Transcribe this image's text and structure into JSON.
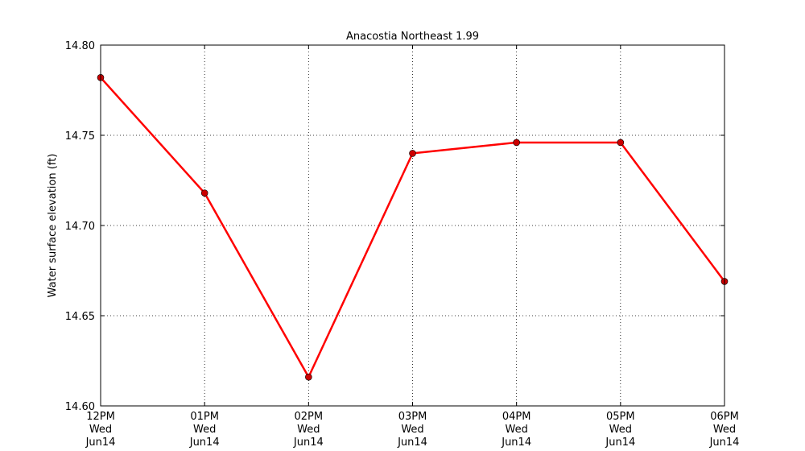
{
  "chart_data": {
    "type": "line",
    "title": "Anacostia Northeast 1.99",
    "xlabel": "",
    "ylabel": "Water surface elevation (ft)",
    "categories": [
      [
        "12PM",
        "Wed",
        "Jun14"
      ],
      [
        "01PM",
        "Wed",
        "Jun14"
      ],
      [
        "02PM",
        "Wed",
        "Jun14"
      ],
      [
        "03PM",
        "Wed",
        "Jun14"
      ],
      [
        "04PM",
        "Wed",
        "Jun14"
      ],
      [
        "05PM",
        "Wed",
        "Jun14"
      ],
      [
        "06PM",
        "Wed",
        "Jun14"
      ]
    ],
    "values": [
      14.782,
      14.718,
      14.616,
      14.74,
      14.746,
      14.746,
      14.669
    ],
    "ylim": [
      14.6,
      14.8
    ],
    "yticks": [
      "14.60",
      "14.65",
      "14.70",
      "14.75",
      "14.80"
    ],
    "grid": true,
    "line_color": "#ff0000",
    "marker_color": "#cc0000"
  }
}
